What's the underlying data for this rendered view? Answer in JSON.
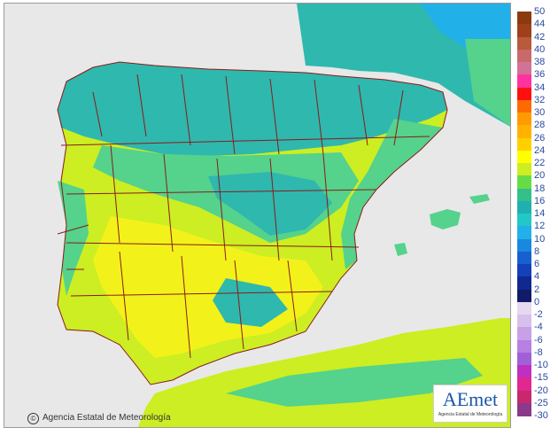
{
  "legend": {
    "labels": [
      "50",
      "44",
      "42",
      "40",
      "38",
      "36",
      "34",
      "32",
      "30",
      "28",
      "26",
      "24",
      "22",
      "20",
      "18",
      "16",
      "14",
      "12",
      "10",
      "8",
      "6",
      "4",
      "2",
      "0",
      "-2",
      "-4",
      "-6",
      "-8",
      "-10",
      "-15",
      "-20",
      "-25",
      "-30"
    ],
    "colors": [
      "#8b3a0f",
      "#a0401a",
      "#b85a3c",
      "#c86a6a",
      "#d27296",
      "#ff33a0",
      "#ff1010",
      "#ff6a00",
      "#ff9a00",
      "#ffb200",
      "#ffd000",
      "#ffff00",
      "#ccee22",
      "#66dd44",
      "#33c08a",
      "#20b0b0",
      "#22c8c8",
      "#22b0e8",
      "#1a88e0",
      "#1660d0",
      "#1440b8",
      "#102890",
      "#101c6a",
      "#e6d8f0",
      "#d8c0ec",
      "#c8a0e8",
      "#b880e0",
      "#a060d8",
      "#c030c0",
      "#e02890",
      "#c82870",
      "#8a3a8a"
    ],
    "label_color": "#2a4aa0"
  },
  "credit_text": "Agencia Estatal de Meteorología",
  "logo": {
    "text": "AEmet",
    "subtitle": "Agencia Estatal de Meteorología"
  },
  "colors": {
    "sea": "#e8e8e8",
    "land_cool": "#2fb8ae",
    "land_mild": "#55d28c",
    "land_warm": "#ccee22",
    "land_hot": "#f2f21a",
    "border": "#8b1a1a"
  }
}
